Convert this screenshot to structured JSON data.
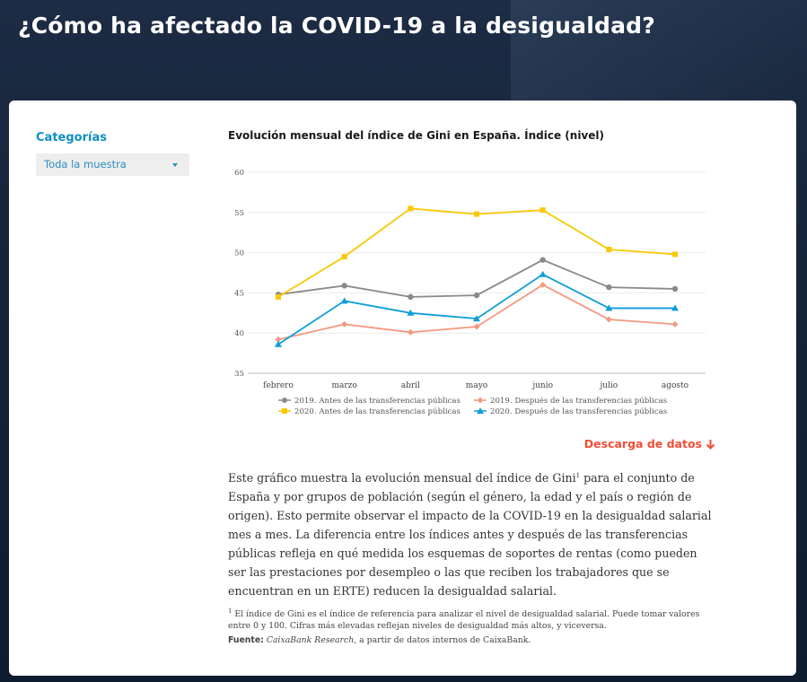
{
  "page_title": "¿Cómo ha afectado la COVID-19 a la desigualdad?",
  "sidebar": {
    "title": "Categorías",
    "select_value": "Toda la muestra"
  },
  "chart_title": "Evolución mensual del índice de Gini en España. Índice (nivel)",
  "chart_data": {
    "type": "line",
    "title": "Evolución mensual del índice de Gini en España. Índice (nivel)",
    "categories": [
      "febrero",
      "marzo",
      "abril",
      "mayo",
      "junio",
      "julio",
      "agosto"
    ],
    "ylim": [
      35,
      60
    ],
    "yticks": [
      35,
      40,
      45,
      50,
      55,
      60
    ],
    "grid": true,
    "legend_position": "bottom",
    "series": [
      {
        "name": "2019. Antes de las transferencias públicas",
        "color": "#8a8a8a",
        "marker": "circle",
        "values": [
          44.8,
          45.9,
          44.5,
          44.7,
          49.1,
          45.7,
          45.5
        ]
      },
      {
        "name": "2019. Después de las transferencias públicas",
        "color": "#f29a82",
        "marker": "diamond",
        "values": [
          39.2,
          41.1,
          40.1,
          40.8,
          46.0,
          41.7,
          41.1
        ]
      },
      {
        "name": "2020. Antes de las transferencias públicas",
        "color": "#f8c800",
        "marker": "square",
        "values": [
          44.5,
          49.5,
          55.5,
          54.8,
          55.3,
          50.4,
          49.8
        ]
      },
      {
        "name": "2020. Después de las transferencias públicas",
        "color": "#0e9ed8",
        "marker": "triangle",
        "values": [
          38.6,
          44.0,
          42.5,
          41.8,
          47.3,
          43.1,
          43.1
        ]
      }
    ]
  },
  "download_label": "Descarga de datos",
  "body": {
    "text_before_sup": "Este gráfico muestra la evolución mensual del índice de Gini",
    "sup": "1",
    "text_after_sup": " para el conjunto de España y por grupos de población (según el género, la edad y el país o región de origen). Esto permite observar el impacto de la COVID-19 en la desigualdad salarial mes a mes. La diferencia entre los índices antes y después de las transferencias públicas refleja en qué medida los esquemas de soportes de rentas (como pueden ser las prestaciones por desempleo o las que reciben los trabajadores que se encuentran en un ERTE) reducen la desigualdad salarial."
  },
  "footnote": {
    "sup": "1",
    "text": " El índice de Gini es el índice de referencia para analizar el nivel de desigualdad salarial. Puede tomar valores entre 0 y 100. Cifras más elevadas reflejan niveles de desigualdad más altos, y viceversa."
  },
  "source": {
    "label": "Fuente:",
    "italic": "CaixaBank Research",
    "rest": ", a partir de datos internos de CaixaBank."
  }
}
